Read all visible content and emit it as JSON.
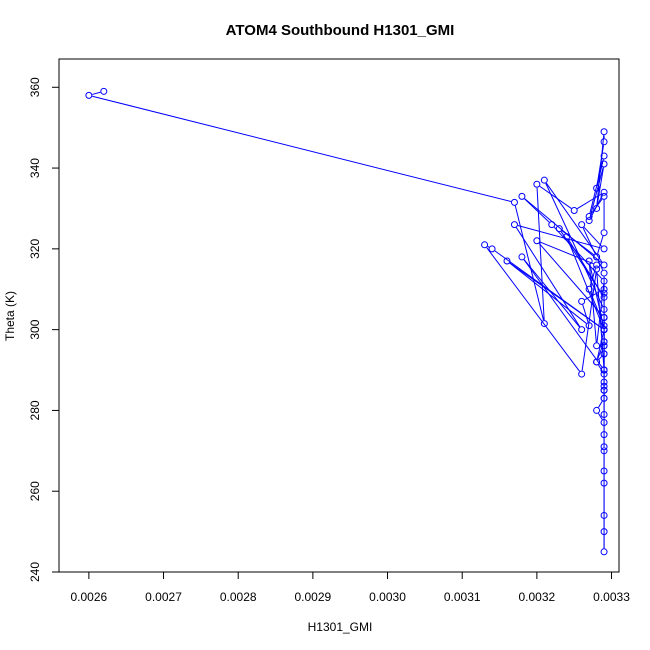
{
  "chart_data": {
    "type": "line",
    "title": "ATOM4 Southbound H1301_GMI",
    "xlabel": "H1301_GMI",
    "ylabel": "Theta (K)",
    "xlim": [
      0.00256,
      0.00331
    ],
    "ylim": [
      240,
      367
    ],
    "grid": false,
    "legend": "none",
    "xticks": [
      {
        "value": 0.0026,
        "label": "0.0026"
      },
      {
        "value": 0.0027,
        "label": "0.0027"
      },
      {
        "value": 0.0028,
        "label": "0.0028"
      },
      {
        "value": 0.0029,
        "label": "0.0029"
      },
      {
        "value": 0.003,
        "label": "0.0030"
      },
      {
        "value": 0.0031,
        "label": "0.0031"
      },
      {
        "value": 0.0032,
        "label": "0.0032"
      },
      {
        "value": 0.0033,
        "label": "0.0033"
      }
    ],
    "yticks": [
      {
        "value": 240,
        "label": "240"
      },
      {
        "value": 260,
        "label": "260"
      },
      {
        "value": 280,
        "label": "280"
      },
      {
        "value": 300,
        "label": "300"
      },
      {
        "value": 320,
        "label": "320"
      },
      {
        "value": 340,
        "label": "340"
      },
      {
        "value": 360,
        "label": "360"
      }
    ],
    "colors": {
      "series": "#0000ff",
      "axis": "#000000"
    },
    "series": [
      {
        "marker": "open-circle",
        "x": [
          0.00262,
          0.0026,
          0.00317,
          0.00321,
          0.0032,
          0.00325,
          0.00329,
          0.00327,
          0.00329,
          0.00328,
          0.00329,
          0.00329,
          0.00328,
          0.00329,
          0.00327,
          0.00329,
          0.00329,
          0.00328,
          0.00329,
          0.00329,
          0.00329,
          0.00329,
          0.00329,
          0.00329,
          0.00328,
          0.00329,
          0.00329,
          0.00329,
          0.00328,
          0.00329,
          0.00329,
          0.00329,
          0.00329,
          0.00329,
          0.00329,
          0.00329,
          0.00329,
          0.00329,
          0.00329,
          0.00329,
          0.00329,
          0.00321,
          0.00329,
          0.00318,
          0.00322,
          0.00329,
          0.00328,
          0.00327,
          0.00329,
          0.00324,
          0.00329,
          0.00323,
          0.00328,
          0.00326,
          0.00329,
          0.00317,
          0.00326,
          0.00318,
          0.00329,
          0.00328,
          0.00326,
          0.00313,
          0.00314,
          0.00329,
          0.00316,
          0.00327,
          0.00326,
          0.00329,
          0.00329,
          0.0032,
          0.00328,
          0.00327,
          0.00329,
          0.00329,
          0.00328,
          0.00329,
          0.00329,
          0.00329,
          0.00329,
          0.00329,
          0.00329,
          0.00329,
          0.00329,
          0.00329,
          0.00329,
          0.00329
        ],
        "y": [
          359,
          358,
          331.5,
          301.5,
          336,
          329.5,
          334,
          327,
          341,
          330,
          349,
          346.5,
          335,
          343,
          328,
          333,
          324,
          318,
          314,
          309,
          303,
          300,
          297,
          294,
          292,
          289,
          286,
          283,
          280,
          277,
          274,
          270,
          265,
          254,
          245,
          250,
          262,
          271,
          285,
          296,
          305,
          337,
          316,
          333,
          326,
          312,
          296,
          317,
          300,
          323,
          308,
          325,
          318,
          326,
          320,
          326,
          300,
          318,
          290,
          315,
          289,
          321,
          320,
          300,
          317,
          301,
          307,
          310,
          303,
          322,
          316,
          310,
          301,
          297,
          292,
          300,
          287,
          283,
          279,
          285,
          290,
          294,
          300,
          303,
          296,
          290
        ]
      }
    ]
  }
}
